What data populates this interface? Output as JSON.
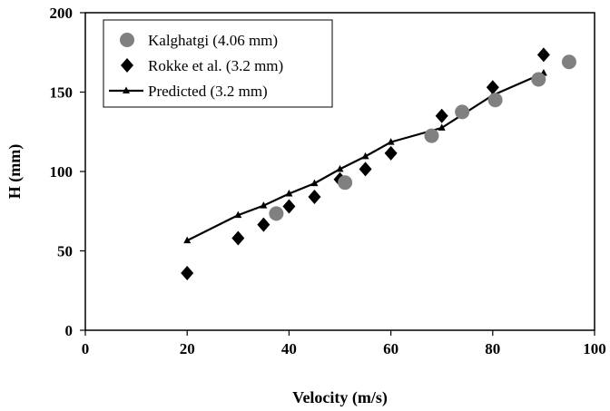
{
  "chart_data": {
    "type": "scatter",
    "title": "",
    "xlabel": "Velocity (m/s)",
    "ylabel": "H (mm)",
    "xlim": [
      0,
      100
    ],
    "ylim": [
      0,
      200
    ],
    "xticks": [
      0,
      20,
      40,
      60,
      80,
      100
    ],
    "yticks": [
      0,
      50,
      100,
      150,
      200
    ],
    "grid": false,
    "legend_position": "top-left",
    "series": [
      {
        "name": "Kalghatgi (4.06 mm)",
        "marker": "circle",
        "color": "#808080",
        "x": [
          37.5,
          51,
          68,
          74,
          80.5,
          89,
          95
        ],
        "y": [
          73.5,
          93,
          122.5,
          137.5,
          145,
          158,
          169
        ]
      },
      {
        "name": "Rokke et al. (3.2 mm)",
        "marker": "diamond",
        "color": "#000000",
        "x": [
          20,
          30,
          35,
          40,
          45,
          50,
          55,
          60,
          70,
          80,
          90
        ],
        "y": [
          36,
          58,
          66.5,
          78,
          84,
          95,
          101.5,
          111.5,
          135,
          153,
          173.5
        ]
      },
      {
        "name": "Predicted (3.2 mm)",
        "marker": "triangle-line",
        "color": "#000000",
        "x": [
          20,
          30,
          35,
          40,
          45,
          50,
          55,
          60,
          70,
          80,
          90
        ],
        "y": [
          56.5,
          72.5,
          78.5,
          86,
          92.5,
          101.5,
          109.5,
          118.5,
          127.5,
          148,
          162
        ]
      }
    ]
  }
}
